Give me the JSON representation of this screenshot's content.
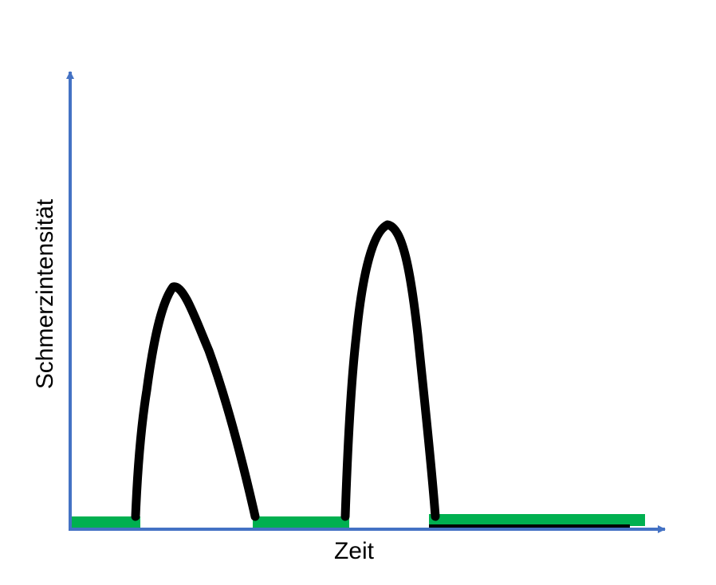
{
  "axes": {
    "x_label": "Zeit",
    "y_label": "Schmerzintensität",
    "color": "#4472C4"
  },
  "pain_curve": {
    "color": "#000000",
    "episodes": [
      {
        "name": "pain-episode-1",
        "peak_relative_height": 0.53
      },
      {
        "name": "pain-episode-2",
        "peak_relative_height": 0.66
      }
    ]
  },
  "pain_free_intervals": {
    "color": "#00B050",
    "count": 3
  }
}
